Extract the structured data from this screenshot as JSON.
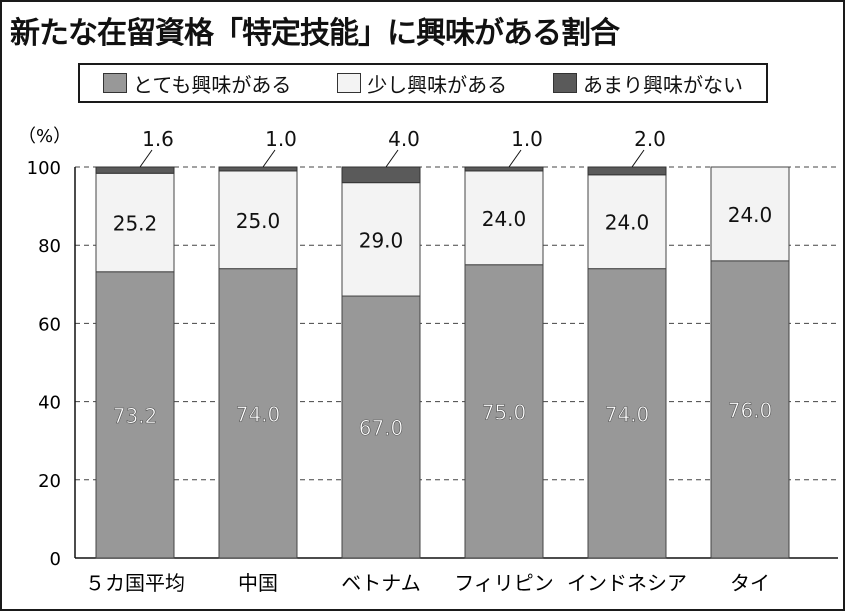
{
  "chart_data": {
    "type": "bar",
    "stacked": true,
    "title": "新たな在留資格「特定技能」に興味がある割合",
    "y_unit": "（%）",
    "ylim": [
      0,
      100
    ],
    "yticks": [
      0,
      20,
      40,
      60,
      80,
      100
    ],
    "categories": [
      "５カ国平均",
      "中国",
      "ベトナム",
      "フィリピン",
      "インドネシア",
      "タイ"
    ],
    "series": [
      {
        "name": "とても興味がある",
        "color": "#989898",
        "values": [
          73.2,
          74.0,
          67.0,
          75.0,
          74.0,
          76.0
        ],
        "labels": [
          "73.2",
          "74.0",
          "67.0",
          "75.0",
          "74.0",
          "76.0"
        ]
      },
      {
        "name": "少し興味がある",
        "color": "#f3f3f3",
        "values": [
          25.2,
          25.0,
          29.0,
          24.0,
          24.0,
          24.0
        ],
        "labels": [
          "25.2",
          "25.0",
          "29.0",
          "24.0",
          "24.0",
          "24.0"
        ]
      },
      {
        "name": "あまり興味がない",
        "color": "#5a5a5a",
        "values": [
          1.6,
          1.0,
          4.0,
          1.0,
          2.0,
          0
        ],
        "labels": [
          "1.6",
          "1.0",
          "4.0",
          "1.0",
          "2.0",
          ""
        ]
      }
    ],
    "grid": "dashed horizontal",
    "legend": "top"
  }
}
